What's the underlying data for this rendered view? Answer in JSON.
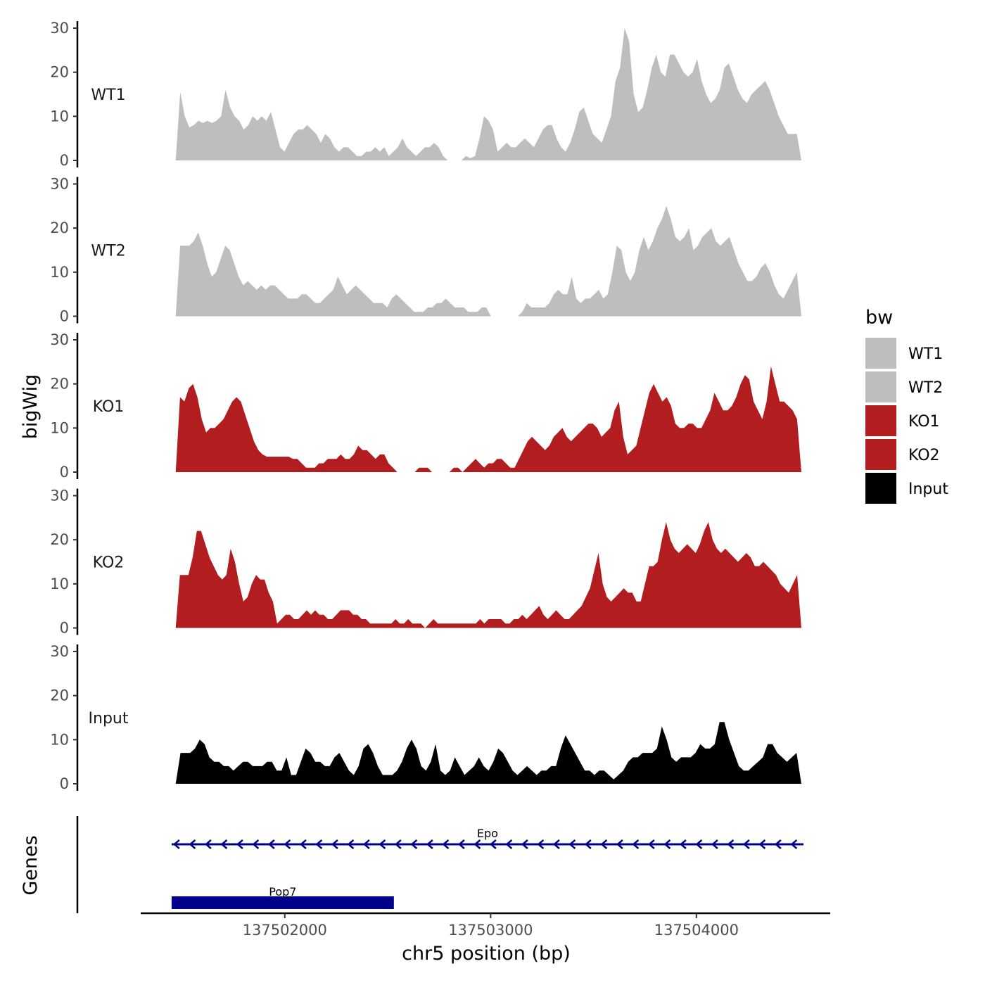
{
  "chart_data": {
    "type": "area",
    "ylabel": "bigWig",
    "genes_label": "Genes",
    "xlabel": "chr5 position (bp)",
    "xlim": [
      137501300,
      137504650
    ],
    "x_ticks": [
      137502000,
      137503000,
      137504000
    ],
    "x_tick_labels": [
      "137502000",
      "137503000",
      "137504000"
    ],
    "y_ticks": [
      0,
      10,
      20,
      30
    ],
    "y_tick_labels": [
      "0",
      "10",
      "20",
      "30"
    ],
    "ylim": [
      0,
      30
    ],
    "data_xrange": [
      137501470,
      137504510
    ],
    "legend": {
      "title": "bw",
      "entries": [
        {
          "label": "WT1",
          "color": "#bebebe"
        },
        {
          "label": "WT2",
          "color": "#bebebe"
        },
        {
          "label": "KO1",
          "color": "#b21e1f"
        },
        {
          "label": "KO2",
          "color": "#b21e1f"
        },
        {
          "label": "Input",
          "color": "#000000"
        }
      ]
    },
    "series": [
      {
        "name": "WT1",
        "color": "#bebebe",
        "values": [
          0,
          15.5,
          10,
          7.5,
          8,
          9,
          8.5,
          9,
          8.5,
          9,
          10,
          16,
          12,
          10,
          9,
          7,
          8,
          10,
          9,
          10,
          9,
          11,
          7,
          3,
          2,
          4,
          6,
          7,
          7,
          8,
          7,
          6,
          4,
          6,
          5,
          3,
          2,
          3,
          3,
          2,
          1,
          1,
          2,
          2,
          3,
          2,
          3,
          1,
          2,
          3,
          5,
          3,
          2,
          1,
          2,
          3,
          3,
          4,
          3,
          1,
          0,
          0,
          0,
          0,
          1,
          0.5,
          1,
          5,
          10,
          9,
          7,
          2,
          3,
          4,
          3,
          3,
          4,
          5,
          4,
          3,
          5,
          7,
          8,
          8,
          5,
          3,
          2,
          4,
          7,
          11,
          12,
          9,
          6,
          5,
          4,
          7,
          10,
          18,
          21,
          30,
          27,
          15,
          11,
          12,
          16,
          21,
          24,
          20,
          19,
          24,
          24,
          22,
          20,
          19,
          20,
          23,
          18,
          15,
          13,
          14,
          16,
          21,
          22,
          19,
          16,
          14,
          13,
          15,
          16,
          17,
          18,
          16,
          13,
          10,
          8,
          6,
          6,
          6,
          0
        ]
      },
      {
        "name": "WT2",
        "color": "#bebebe",
        "values": [
          0,
          16,
          16,
          16,
          17,
          19,
          16,
          12,
          9,
          10,
          13,
          16,
          15,
          12,
          9,
          7,
          8,
          7,
          6,
          7,
          6,
          7,
          7,
          6,
          5,
          4,
          4,
          4,
          5,
          5,
          4,
          3,
          3,
          4,
          5,
          6,
          9,
          7,
          5,
          6,
          7,
          6,
          5,
          4,
          3,
          3,
          3,
          2,
          4,
          5,
          4,
          3,
          2,
          1,
          1,
          1,
          2,
          2,
          3,
          3,
          4,
          3,
          2,
          2,
          2,
          1,
          1,
          1,
          2,
          2,
          0,
          0,
          0,
          0,
          0,
          0,
          0,
          1,
          3,
          2,
          2,
          2,
          2,
          3,
          5,
          6,
          5,
          5,
          9,
          4,
          3,
          4,
          4,
          5,
          6,
          4,
          5,
          10,
          16,
          15,
          10,
          8,
          10,
          15,
          18,
          15,
          17,
          20,
          22,
          25,
          22,
          18,
          17,
          18,
          20,
          15,
          16,
          18,
          19,
          20,
          17,
          16,
          17,
          18,
          15,
          12,
          10,
          8,
          8,
          9,
          11,
          12,
          10,
          7,
          5,
          4,
          6,
          8,
          10,
          0
        ]
      },
      {
        "name": "KO1",
        "color": "#b21e1f",
        "values": [
          0,
          17,
          16,
          19,
          20,
          17,
          12,
          9,
          10,
          10,
          11,
          12,
          14,
          16,
          17,
          16,
          13,
          10,
          7,
          5,
          4,
          3.5,
          3.5,
          3.5,
          3.5,
          3.5,
          3.5,
          3,
          3,
          2,
          1,
          1,
          1,
          2,
          2,
          3,
          3,
          3,
          4,
          3,
          3,
          4,
          6,
          5,
          5,
          4,
          3,
          4,
          4,
          2,
          1,
          0,
          0,
          0,
          0,
          0,
          1,
          1,
          1,
          0,
          0,
          0,
          0,
          0,
          1,
          1,
          0,
          1,
          2,
          3,
          2,
          1,
          2,
          2,
          3,
          3,
          2,
          1,
          1,
          3,
          5,
          7,
          8,
          7,
          6,
          5,
          6,
          8,
          9,
          10,
          8,
          7,
          8,
          9,
          10,
          11,
          11,
          10,
          8,
          9,
          10,
          14,
          16,
          8,
          4,
          5,
          6,
          10,
          14,
          18,
          20,
          18,
          16,
          17,
          15,
          11,
          10,
          10,
          11,
          11,
          10,
          10,
          12,
          14,
          18,
          16,
          14,
          14,
          15,
          17,
          20,
          22,
          21,
          16,
          14,
          12,
          16,
          24,
          20,
          16,
          16,
          15,
          14,
          12,
          0
        ]
      },
      {
        "name": "KO2",
        "color": "#b21e1f",
        "values": [
          0,
          12,
          12,
          12,
          16,
          22,
          22,
          19,
          16,
          14,
          12,
          11,
          12,
          18,
          15,
          10,
          6,
          7,
          10,
          12,
          11,
          11,
          8,
          6,
          1,
          2,
          3,
          3,
          2,
          2,
          3,
          4,
          3,
          4,
          3,
          3,
          2,
          2,
          3,
          4,
          4,
          4,
          3,
          3,
          2,
          2,
          1,
          1,
          1,
          1,
          1,
          1,
          2,
          1,
          1,
          2,
          1,
          1,
          1,
          0,
          1,
          2,
          1,
          1,
          1,
          1,
          1,
          1,
          1,
          1,
          1,
          1,
          2,
          1,
          2,
          2,
          2,
          2,
          1,
          1,
          2,
          2,
          3,
          2,
          3,
          4,
          5,
          3,
          2,
          3,
          4,
          3,
          2,
          2,
          3,
          4,
          5,
          7,
          9,
          13,
          17,
          10,
          7,
          6,
          7,
          8,
          9,
          8,
          8,
          6,
          6,
          10,
          14,
          14,
          15,
          20,
          24,
          20,
          18,
          17,
          18,
          19,
          18,
          17,
          19,
          22,
          24,
          20,
          18,
          17,
          18,
          17,
          16,
          15,
          16,
          17,
          16,
          14,
          14,
          15,
          14,
          13,
          12,
          10,
          9,
          8,
          10,
          12,
          0
        ]
      },
      {
        "name": "Input",
        "color": "#000000",
        "values": [
          0,
          7,
          7,
          7,
          8,
          10,
          9,
          6,
          5,
          5,
          4,
          4,
          3,
          4,
          5,
          5,
          4,
          4,
          4,
          5,
          5,
          3,
          3,
          6,
          2,
          2,
          5,
          8,
          7,
          5,
          5,
          4,
          4,
          6,
          7,
          5,
          3,
          2,
          4,
          8,
          9,
          7,
          4,
          2,
          2,
          2,
          3,
          5,
          8,
          10,
          8,
          4,
          3,
          5,
          9,
          3,
          2,
          3,
          6,
          4,
          2,
          3,
          4,
          6,
          4,
          3,
          5,
          8,
          7,
          5,
          3,
          2,
          3,
          4,
          3,
          2,
          3,
          3,
          4,
          4,
          8,
          11,
          9,
          7,
          5,
          3,
          3,
          2,
          3,
          3,
          2,
          1,
          2,
          3,
          5,
          6,
          6,
          7,
          7,
          7,
          8,
          13,
          10,
          6,
          5,
          6,
          6,
          6,
          7,
          9,
          8,
          8,
          9,
          14,
          14,
          10,
          7,
          4,
          3,
          3,
          4,
          5,
          6,
          9,
          9,
          7,
          6,
          5,
          6,
          7,
          0
        ]
      }
    ],
    "genes": [
      {
        "name": "Epo",
        "strand": "-",
        "start": 137501450,
        "end": 137504520
      },
      {
        "name": "Pop7",
        "strand": "-",
        "start": 137501450,
        "end": 137502530
      }
    ]
  }
}
